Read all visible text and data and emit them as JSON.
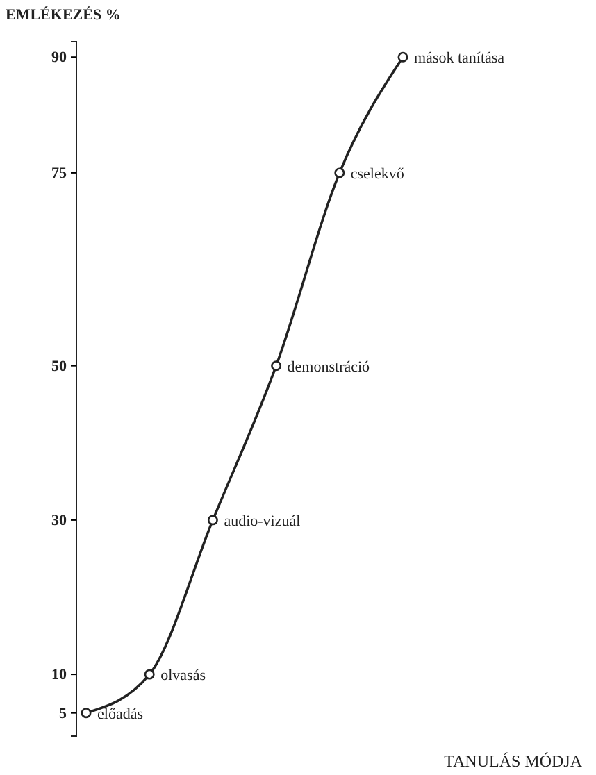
{
  "chart_data": {
    "type": "line",
    "xlabel": "TANULÁS MÓDJA",
    "ylabel": "EMLÉKEZÉS %",
    "categories": [
      null,
      null,
      null,
      null,
      null,
      null
    ],
    "series": [
      {
        "color": "#222222",
        "values": [
          5,
          10,
          30,
          50,
          75,
          90
        ]
      }
    ],
    "ylim": [
      2,
      92
    ],
    "yticks": [
      5,
      10,
      30,
      50,
      75,
      90
    ],
    "grid": false,
    "marker": "circle",
    "line_style": "solid",
    "annotations": [
      "előadás",
      "olvasás",
      "audio-vizuál",
      "demonstráció",
      "cselekvő",
      "mások tanítása"
    ]
  }
}
